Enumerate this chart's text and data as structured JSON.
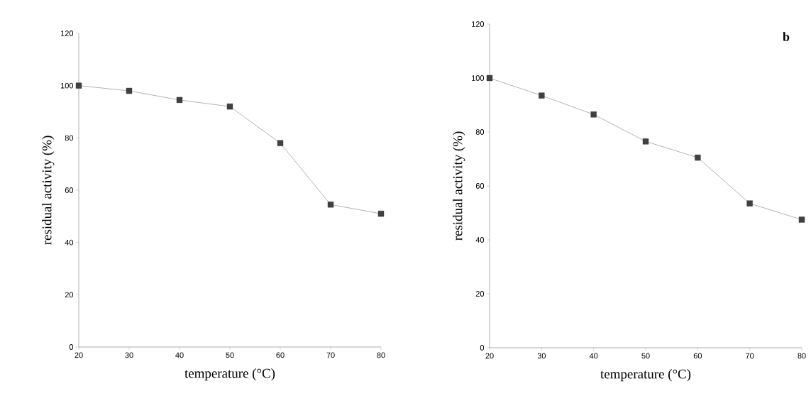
{
  "chart_data": [
    {
      "type": "line",
      "xlabel": "temperature (°C)",
      "ylabel": "residual activity (%)",
      "x": [
        20,
        30,
        40,
        50,
        60,
        70,
        80
      ],
      "values": [
        100,
        98,
        94.5,
        92,
        78,
        54.5,
        51
      ],
      "color": "#404040",
      "marker": "square",
      "line_style": "solid",
      "xlim": [
        20,
        80
      ],
      "ylim": [
        0,
        120
      ],
      "xticks": [
        20,
        30,
        40,
        50,
        60,
        70,
        80
      ],
      "yticks": [
        0,
        20,
        40,
        60,
        80,
        100,
        120
      ],
      "grid": false
    },
    {
      "type": "line",
      "title": "b",
      "xlabel": "temperature (°C)",
      "ylabel": "residual activity (%)",
      "x": [
        20,
        30,
        40,
        50,
        60,
        70,
        80
      ],
      "values": [
        100,
        93.5,
        86.5,
        76.5,
        70.5,
        53.5,
        47.5
      ],
      "color": "#404040",
      "marker": "square",
      "line_style": "solid",
      "xlim": [
        20,
        80
      ],
      "ylim": [
        0,
        120
      ],
      "xticks": [
        20,
        30,
        40,
        50,
        60,
        70,
        80
      ],
      "yticks": [
        0,
        20,
        40,
        60,
        80,
        100,
        120
      ],
      "grid": false
    }
  ]
}
